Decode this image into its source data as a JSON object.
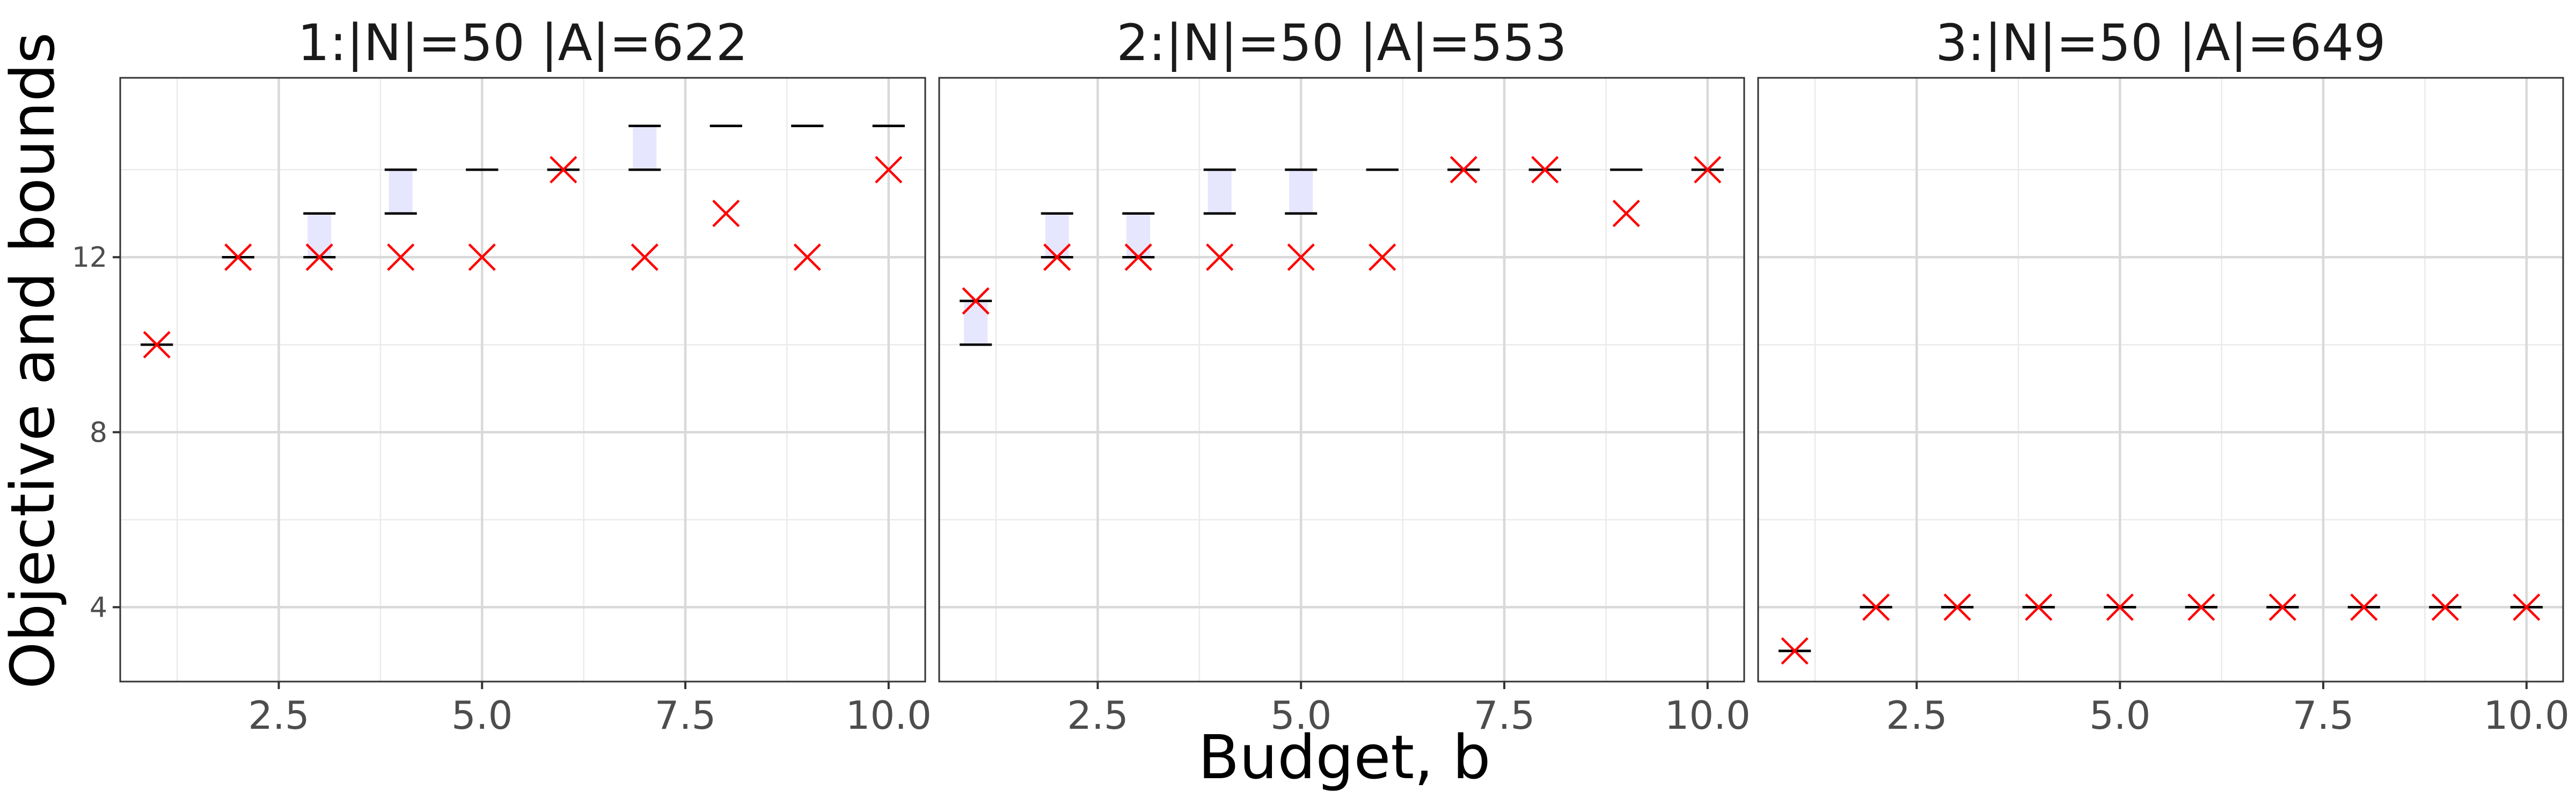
{
  "figure": {
    "xlabel": "Budget, b",
    "ylabel": "Objective and bounds",
    "colors": {
      "marker": "#ff0000",
      "bound": "#000000",
      "band": "#e6e6ff",
      "grid": "#d9d9d9",
      "panel_border": "#333333"
    }
  },
  "chart_data": [
    {
      "type": "scatter",
      "title": "1:|N|=50 |A|=622",
      "xlim": [
        0.55,
        10.45
      ],
      "ylim": [
        2.3,
        16.1
      ],
      "x_ticks": [
        2.5,
        5.0,
        7.5,
        10.0
      ],
      "x_tick_labels": [
        "2.5",
        "5.0",
        "7.5",
        "10.0"
      ],
      "y_ticks": [
        4,
        8,
        12
      ],
      "y_tick_labels": [
        "4",
        "8",
        "12"
      ],
      "grid": true,
      "x": [
        1,
        2,
        3,
        4,
        5,
        6,
        7,
        8,
        9,
        10
      ],
      "objective": [
        10,
        12,
        12,
        12,
        12,
        14,
        12,
        13,
        12,
        14
      ],
      "lower_bound": [
        10,
        12,
        12,
        13,
        14,
        14,
        14,
        15,
        15,
        15
      ],
      "upper_bound": [
        10,
        12,
        13,
        14,
        14,
        14,
        15,
        15,
        15,
        15
      ]
    },
    {
      "type": "scatter",
      "title": "2:|N|=50 |A|=553",
      "xlim": [
        0.55,
        10.45
      ],
      "ylim": [
        2.3,
        16.1
      ],
      "x_ticks": [
        2.5,
        5.0,
        7.5,
        10.0
      ],
      "x_tick_labels": [
        "2.5",
        "5.0",
        "7.5",
        "10.0"
      ],
      "y_ticks": [
        4,
        8,
        12
      ],
      "y_tick_labels": [
        "4",
        "8",
        "12"
      ],
      "grid": true,
      "x": [
        1,
        2,
        3,
        4,
        5,
        6,
        7,
        8,
        9,
        10
      ],
      "objective": [
        11,
        12,
        12,
        12,
        12,
        12,
        14,
        14,
        13,
        14
      ],
      "lower_bound": [
        10,
        12,
        12,
        13,
        13,
        14,
        14,
        14,
        14,
        14
      ],
      "upper_bound": [
        11,
        13,
        13,
        14,
        14,
        14,
        14,
        14,
        14,
        14
      ]
    },
    {
      "type": "scatter",
      "title": "3:|N|=50 |A|=649",
      "xlim": [
        0.55,
        10.45
      ],
      "ylim": [
        2.3,
        16.1
      ],
      "x_ticks": [
        2.5,
        5.0,
        7.5,
        10.0
      ],
      "x_tick_labels": [
        "2.5",
        "5.0",
        "7.5",
        "10.0"
      ],
      "y_ticks": [
        4,
        8,
        12
      ],
      "y_tick_labels": [
        "4",
        "8",
        "12"
      ],
      "grid": true,
      "x": [
        1,
        2,
        3,
        4,
        5,
        6,
        7,
        8,
        9,
        10
      ],
      "objective": [
        3,
        4,
        4,
        4,
        4,
        4,
        4,
        4,
        4,
        4
      ],
      "lower_bound": [
        3,
        4,
        4,
        4,
        4,
        4,
        4,
        4,
        4,
        4
      ],
      "upper_bound": [
        3,
        4,
        4,
        4,
        4,
        4,
        4,
        4,
        4,
        4
      ]
    }
  ]
}
